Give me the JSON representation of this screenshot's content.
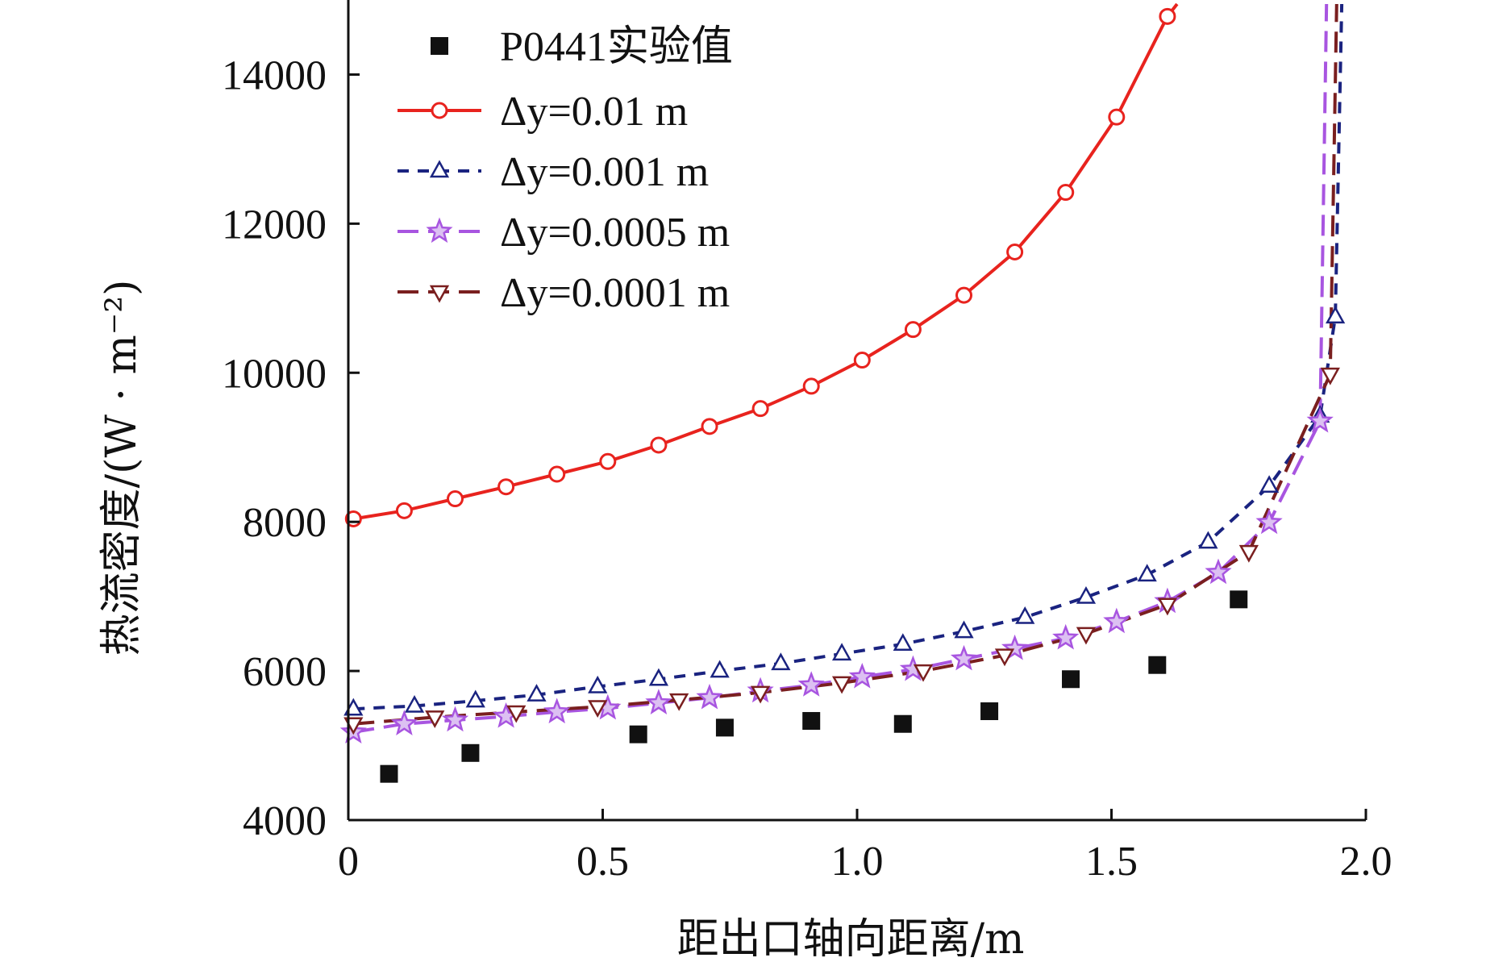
{
  "chart_data": {
    "type": "line",
    "xlabel": "距出口轴向距离/m",
    "ylabel": "热流密度/(W · m⁻²)",
    "xlim": [
      0,
      2.0
    ],
    "ylim": [
      4000,
      15000
    ],
    "xticks": [
      "0",
      "0.5",
      "1.0",
      "1.5",
      "2.0"
    ],
    "yticks": [
      "4000",
      "6000",
      "8000",
      "10000",
      "12000",
      "14000"
    ],
    "xtick_values": [
      0,
      0.5,
      1.0,
      1.5,
      2.0
    ],
    "ytick_values": [
      4000,
      6000,
      8000,
      10000,
      12000,
      14000
    ],
    "grid": false,
    "legend_position": "top-left",
    "series": [
      {
        "name": "P0441实验值",
        "color": "#111111",
        "marker": "square",
        "line": "none",
        "x": [
          0.08,
          0.24,
          0.57,
          0.74,
          0.91,
          1.09,
          1.26,
          1.42,
          1.59,
          1.75
        ],
        "y": [
          4620,
          4900,
          5150,
          5240,
          5330,
          5290,
          5460,
          5890,
          6080,
          6960
        ]
      },
      {
        "name": "Δy=0.01 m",
        "color": "#e8231e",
        "marker": "circle",
        "line": "solid",
        "x": [
          0.01,
          0.11,
          0.21,
          0.31,
          0.41,
          0.51,
          0.61,
          0.71,
          0.81,
          0.91,
          1.01,
          1.11,
          1.21,
          1.31,
          1.41,
          1.51,
          1.61
        ],
        "y": [
          8040,
          8150,
          8310,
          8470,
          8640,
          8810,
          9030,
          9280,
          9520,
          9820,
          10170,
          10580,
          11040,
          11620,
          12420,
          13430,
          14780
        ]
      },
      {
        "name": "Δy=0.001 m",
        "color": "#1a2380",
        "marker": "triangle-up",
        "line": "dotted",
        "x": [
          0.01,
          0.13,
          0.25,
          0.37,
          0.49,
          0.61,
          0.73,
          0.85,
          0.97,
          1.09,
          1.21,
          1.33,
          1.45,
          1.57,
          1.69,
          1.81,
          1.91,
          1.94
        ],
        "y": [
          5490,
          5530,
          5600,
          5680,
          5790,
          5890,
          6000,
          6100,
          6230,
          6360,
          6530,
          6720,
          6990,
          7290,
          7730,
          8480,
          9420,
          10750
        ]
      },
      {
        "name": "Δy=0.0005 m",
        "color": "#a855e0",
        "marker": "star",
        "line": "dashed",
        "x": [
          0.01,
          0.11,
          0.21,
          0.31,
          0.41,
          0.51,
          0.61,
          0.71,
          0.81,
          0.91,
          1.01,
          1.11,
          1.21,
          1.31,
          1.41,
          1.51,
          1.61,
          1.71,
          1.81,
          1.91
        ],
        "y": [
          5180,
          5290,
          5340,
          5390,
          5450,
          5500,
          5570,
          5640,
          5730,
          5810,
          5920,
          6020,
          6160,
          6300,
          6440,
          6660,
          6930,
          7320,
          7990,
          9350
        ]
      },
      {
        "name": "Δy=0.0001 m",
        "color": "#7a1f1f",
        "marker": "triangle-down",
        "line": "dashed",
        "x": [
          0.01,
          0.17,
          0.33,
          0.49,
          0.65,
          0.81,
          0.97,
          1.13,
          1.29,
          1.45,
          1.61,
          1.77,
          1.93
        ],
        "y": [
          5290,
          5380,
          5450,
          5520,
          5610,
          5710,
          5840,
          6000,
          6210,
          6500,
          6890,
          7600,
          9980
        ]
      }
    ]
  }
}
